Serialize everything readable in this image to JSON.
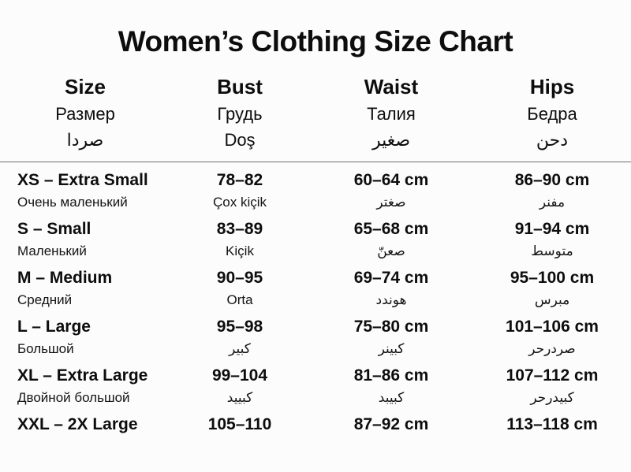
{
  "title": "Women’s Clothing Size Chart",
  "columns": [
    {
      "en": "Size",
      "ru": "Размер",
      "ar": "صردا"
    },
    {
      "en": "Bust",
      "ru": "Грудь",
      "ar": "Doş"
    },
    {
      "en": "Waist",
      "ru": "Талия",
      "ar": "صغير"
    },
    {
      "en": "Hips",
      "ru": "Бедра",
      "ar": "دحن"
    }
  ],
  "rows": [
    {
      "size": "XS – Extra Small",
      "size_sub": "Очень маленький",
      "bust": "78–82",
      "bust_sub": "Çox kiçik",
      "waist": "60–64 cm",
      "waist_sub": "صغتر",
      "hips": "86–90 cm",
      "hips_sub": "مفنر"
    },
    {
      "size": "S – Small",
      "size_sub": "Маленький",
      "bust": "83–89",
      "bust_sub": "Kiçik",
      "waist": "65–68 cm",
      "waist_sub": "صعنّ",
      "hips": "91–94 cm",
      "hips_sub": "متوسط"
    },
    {
      "size": "M – Medium",
      "size_sub": "Средний",
      "bust": "90–95",
      "bust_sub": "Orta",
      "waist": "69–74 cm",
      "waist_sub": "هوندد",
      "hips": "95–100 cm",
      "hips_sub": "مبرس"
    },
    {
      "size": "L – Large",
      "size_sub": "Большой",
      "bust": "95–98",
      "bust_sub": "كبير",
      "waist": "75–80 cm",
      "waist_sub": "كبينر",
      "hips": "101–106 cm",
      "hips_sub": "صردرحر"
    },
    {
      "size": "XL – Extra Large",
      "size_sub": "Двойной большой",
      "bust": "99–104",
      "bust_sub": "كبييد",
      "waist": "81–86 cm",
      "waist_sub": "كبيبد",
      "hips": "107–112 cm",
      "hips_sub": "كبيدرحر"
    },
    {
      "size": "XXL – 2X Large",
      "size_sub": "",
      "bust": "105–110",
      "bust_sub": "",
      "waist": "87–92 cm",
      "waist_sub": "",
      "hips": "113–118 cm",
      "hips_sub": ""
    }
  ],
  "chart_data": {
    "type": "table",
    "title": "Women’s Clothing Size Chart",
    "column_headers": [
      "Size",
      "Bust",
      "Waist",
      "Hips"
    ],
    "column_headers_ru": [
      "Размер",
      "Грудь",
      "Талия",
      "Бедра"
    ],
    "column_headers_other": [
      "صردا",
      "Doş",
      "صغير",
      "دحن"
    ],
    "rows": [
      [
        "XS – Extra Small",
        "78–82",
        "60–64 cm",
        "86–90 cm"
      ],
      [
        "S – Small",
        "83–89",
        "65–68 cm",
        "91–94 cm"
      ],
      [
        "M – Medium",
        "90–95",
        "69–74 cm",
        "95–100 cm"
      ],
      [
        "L – Large",
        "95–98",
        "75–80 cm",
        "101–106 cm"
      ],
      [
        "XL – Extra Large",
        "99–104",
        "81–86 cm",
        "107–112 cm"
      ],
      [
        "XXL – 2X Large",
        "105–110",
        "87–92 cm",
        "113–118 cm"
      ]
    ],
    "row_sublabels": [
      [
        "Очень маленький",
        "Çox kiçik",
        "صغتر",
        "مفنر"
      ],
      [
        "Маленький",
        "Kiçik",
        "صعنّ",
        "متوسط"
      ],
      [
        "Средний",
        "Orta",
        "هوندد",
        "مبرس"
      ],
      [
        "Большой",
        "كبير",
        "كبينر",
        "صردرحر"
      ],
      [
        "Двойной большой",
        "كبييد",
        "كبيبد",
        "كبيدرحر"
      ],
      [
        "",
        "",
        "",
        ""
      ]
    ],
    "text_color": "#0d0d0d",
    "background_color": "#fcfcfc",
    "divider_color": "#6f6f6f"
  }
}
